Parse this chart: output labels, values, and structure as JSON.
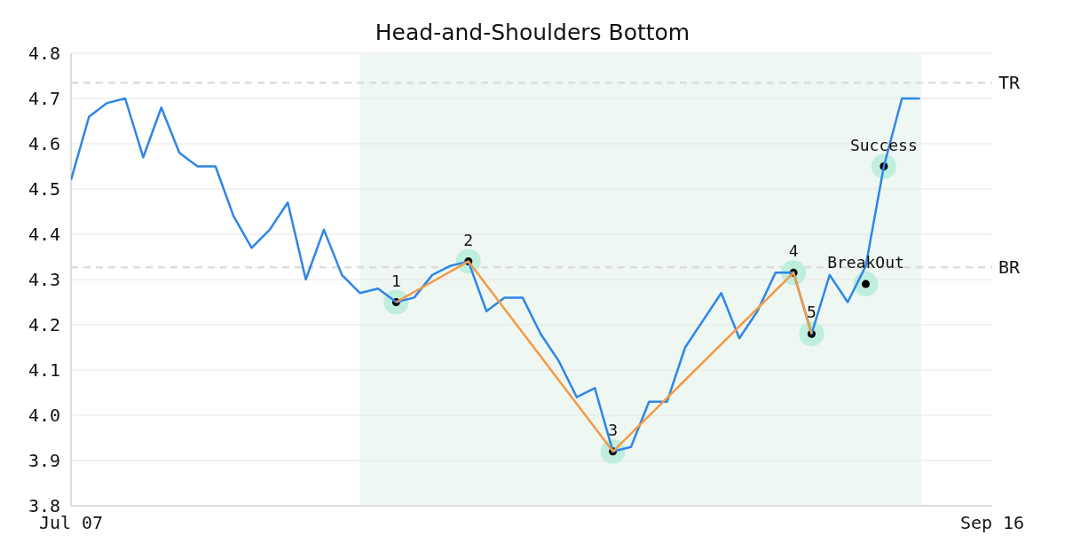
{
  "chart_data": {
    "type": "line",
    "title": "Head-and-Shoulders Bottom",
    "categories": [
      "Jul 07",
      null,
      null,
      null,
      null,
      null,
      null,
      null,
      null,
      null,
      null,
      null,
      null,
      null,
      null,
      null,
      null,
      null,
      null,
      null,
      null,
      null,
      null,
      null,
      null,
      null,
      null,
      null,
      null,
      null,
      null,
      null,
      null,
      null,
      null,
      null,
      null,
      null,
      null,
      null,
      null,
      null,
      null,
      null,
      null,
      null,
      null,
      null,
      null,
      null,
      null,
      "Sep 16"
    ],
    "ylim": [
      3.8,
      4.8
    ],
    "yticks": [
      3.8,
      3.9,
      {
        "value": 4,
        "label": "4.0"
      },
      4.1,
      4.2,
      4.3,
      4.4,
      4.5,
      4.6,
      4.7,
      4.8
    ],
    "grid": "y",
    "legend": false,
    "series": [
      {
        "color": "#2e86e8",
        "values": [
          4.52,
          4.66,
          4.69,
          4.7,
          4.57,
          4.68,
          4.58,
          4.55,
          4.55,
          4.44,
          4.37,
          4.41,
          4.47,
          4.3,
          4.41,
          4.31,
          4.27,
          4.28,
          4.25,
          4.26,
          4.31,
          4.33,
          4.34,
          4.23,
          4.26,
          4.26,
          4.18,
          4.12,
          4.04,
          4.06,
          3.92,
          3.93,
          4.03,
          4.03,
          4.15,
          4.21,
          4.27,
          4.17,
          4.23,
          4.315,
          4.315,
          4.18,
          4.31,
          4.25,
          4.33,
          4.55,
          4.7,
          4.7,
          null,
          null,
          null,
          null
        ]
      },
      {
        "color": "#f59a45",
        "values": [
          null,
          null,
          null,
          null,
          null,
          null,
          null,
          null,
          null,
          null,
          null,
          null,
          null,
          null,
          null,
          null,
          null,
          null,
          4.25,
          null,
          null,
          null,
          4.34,
          null,
          null,
          null,
          null,
          null,
          null,
          null,
          3.92,
          null,
          null,
          null,
          null,
          null,
          null,
          null,
          null,
          null,
          4.315,
          4.18,
          null,
          null,
          null,
          null,
          null,
          null,
          null,
          null,
          null,
          null
        ]
      },
      {
        "type": "scatter",
        "color": "#000000",
        "marker": "circle",
        "values": [
          null,
          null,
          null,
          null,
          null,
          null,
          null,
          null,
          null,
          null,
          null,
          null,
          null,
          null,
          null,
          null,
          null,
          null,
          4.25,
          null,
          null,
          null,
          4.34,
          null,
          null,
          null,
          null,
          null,
          null,
          null,
          3.92,
          null,
          null,
          null,
          null,
          null,
          null,
          null,
          null,
          null,
          4.315,
          4.18,
          null,
          null,
          4.29,
          4.55,
          null,
          null,
          null,
          null,
          null,
          null
        ]
      }
    ],
    "annotations": [
      {
        "text": "1",
        "y": 4.25
      },
      {
        "text": "2",
        "y": 4.34
      },
      {
        "text": "3",
        "y": 3.92
      },
      {
        "text": "4",
        "y": 4.315
      },
      {
        "text": "5",
        "y": 4.18
      },
      {
        "text": "BreakOut",
        "y": 4.29
      },
      {
        "text": "Success",
        "y": 4.55
      }
    ],
    "ref_lines": [
      {
        "axis": "y",
        "value": 4.735,
        "label": "TR",
        "color": "#dddddd",
        "line_style": "dashed"
      },
      {
        "axis": "y",
        "value": 4.327,
        "label": "BR",
        "color": "#dddddd",
        "line_style": "dashed"
      }
    ]
  }
}
